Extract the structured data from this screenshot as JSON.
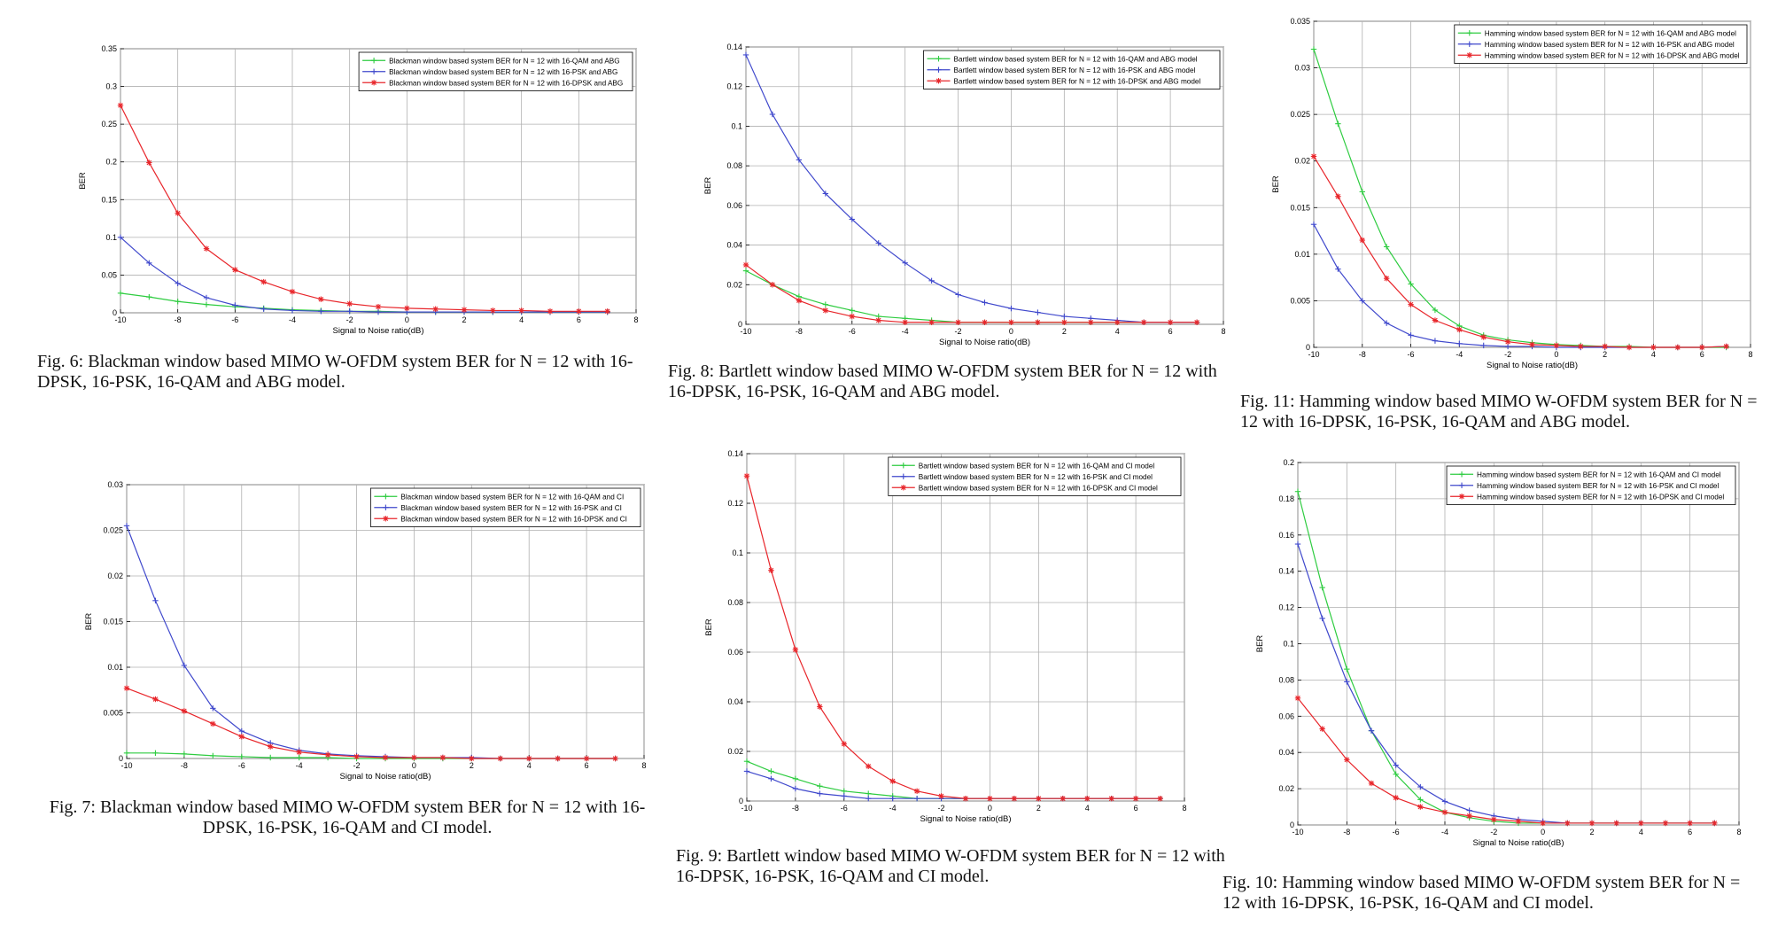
{
  "colors": {
    "qam": "#2ecc40",
    "psk": "#3f48cc",
    "dpsk": "#e8262b",
    "grid": "#b0b0b0"
  },
  "xlabel": "Signal to Noise ratio(dB)",
  "ylabel": "BER",
  "chart_data": [
    {
      "id": "fig6",
      "type": "line",
      "xlim": [
        -10,
        8
      ],
      "ylim": [
        0,
        0.35
      ],
      "xticks": [
        "-10",
        "-8",
        "-6",
        "-4",
        "-2",
        "0",
        "2",
        "4",
        "6",
        "8"
      ],
      "yticks": [
        "0",
        "0.05",
        "0.1",
        "0.15",
        "0.2",
        "0.25",
        "0.3",
        "0.35"
      ],
      "ytick_values": [
        0,
        0.05,
        0.1,
        0.15,
        0.2,
        0.25,
        0.3,
        0.35
      ],
      "xlabel": "Signal to Noise ratio(dB)",
      "ylabel": "BER",
      "grid": true,
      "legend_position": "top-right",
      "x": [
        -10,
        -9,
        -8,
        -7,
        -6,
        -5,
        -4,
        -3,
        -2,
        -1,
        0,
        1,
        2,
        3,
        4,
        5,
        6,
        7
      ],
      "series": [
        {
          "name": "Blackman window based system BER for N = 12 with 16-QAM and ABG",
          "color": "#2ecc40",
          "marker": "+",
          "values": [
            0.026,
            0.021,
            0.015,
            0.011,
            0.008,
            0.006,
            0.004,
            0.003,
            0.002,
            0.002,
            0.001,
            0.001,
            0.001,
            0.001,
            0.001,
            0.001,
            0.001,
            0.001
          ]
        },
        {
          "name": "Blackman window based system BER for N = 12 with 16-PSK and ABG",
          "color": "#3f48cc",
          "marker": "+",
          "values": [
            0.1,
            0.066,
            0.039,
            0.02,
            0.01,
            0.005,
            0.003,
            0.002,
            0.002,
            0.001,
            0.001,
            0.001,
            0.001,
            0.001,
            0.001,
            0.001,
            0.001,
            0.001
          ]
        },
        {
          "name": "Blackman window based system BER for N = 12 with 16-DPSK and ABG",
          "color": "#e8262b",
          "marker": "*",
          "values": [
            0.275,
            0.199,
            0.132,
            0.085,
            0.057,
            0.041,
            0.028,
            0.018,
            0.012,
            0.008,
            0.006,
            0.005,
            0.004,
            0.003,
            0.003,
            0.002,
            0.002,
            0.002
          ]
        }
      ],
      "caption": "Fig. 6:  Blackman window based MIMO W-OFDM system BER for N = 12 with 16-DPSK, 16-PSK, 16-QAM and ABG model."
    },
    {
      "id": "fig7",
      "type": "line",
      "xlim": [
        -10,
        8
      ],
      "ylim": [
        0,
        0.03
      ],
      "xticks": [
        "-10",
        "-8",
        "-6",
        "-4",
        "-2",
        "0",
        "2",
        "4",
        "6",
        "8"
      ],
      "yticks": [
        "0",
        "0.005",
        "0.01",
        "0.015",
        "0.02",
        "0.025",
        "0.03"
      ],
      "ytick_values": [
        0,
        0.005,
        0.01,
        0.015,
        0.02,
        0.025,
        0.03
      ],
      "xlabel": "Signal to Noise ratio(dB)",
      "ylabel": "BER",
      "grid": true,
      "legend_position": "top-right",
      "x": [
        -10,
        -9,
        -8,
        -7,
        -6,
        -5,
        -4,
        -3,
        -2,
        -1,
        0,
        1,
        2,
        3,
        4,
        5,
        6,
        7
      ],
      "series": [
        {
          "name": "Blackman window based system BER for N = 12 with 16-QAM and CI",
          "color": "#2ecc40",
          "marker": "+",
          "values": [
            0.0006,
            0.0006,
            0.0005,
            0.0003,
            0.0002,
            0.0001,
            0.0001,
            0.0001,
            0,
            0,
            0,
            0,
            0,
            0,
            0,
            0,
            0,
            0
          ]
        },
        {
          "name": "Blackman window based system BER for N = 12 with 16-PSK and CI",
          "color": "#3f48cc",
          "marker": "+",
          "values": [
            0.0255,
            0.0173,
            0.0102,
            0.0055,
            0.003,
            0.0017,
            0.0009,
            0.0005,
            0.0003,
            0.0002,
            0.0001,
            0.0001,
            0.0001,
            0,
            0,
            0,
            0,
            0
          ]
        },
        {
          "name": "Blackman window based system BER for N = 12 with 16-DPSK and CI",
          "color": "#e8262b",
          "marker": "*",
          "values": [
            0.0077,
            0.0065,
            0.0052,
            0.0038,
            0.0024,
            0.0013,
            0.0007,
            0.0004,
            0.0002,
            0.0001,
            0.0001,
            0.0001,
            0,
            0,
            0,
            0,
            0,
            0
          ]
        }
      ],
      "caption": "Fig. 7:  Blackman window based MIMO W-OFDM system BER for N = 12 with 16-DPSK, 16-PSK, 16-QAM and CI model."
    },
    {
      "id": "fig8",
      "type": "line",
      "xlim": [
        -10,
        8
      ],
      "ylim": [
        0,
        0.14
      ],
      "xticks": [
        "-10",
        "-8",
        "-6",
        "-4",
        "-2",
        "0",
        "2",
        "4",
        "6",
        "8"
      ],
      "yticks": [
        "0",
        "0.02",
        "0.04",
        "0.06",
        "0.08",
        "0.1",
        "0.12",
        "0.14"
      ],
      "ytick_values": [
        0,
        0.02,
        0.04,
        0.06,
        0.08,
        0.1,
        0.12,
        0.14
      ],
      "xlabel": "Signal to Noise ratio(dB)",
      "ylabel": "BER",
      "grid": true,
      "legend_position": "top-right",
      "x": [
        -10,
        -9,
        -8,
        -7,
        -6,
        -5,
        -4,
        -3,
        -2,
        -1,
        0,
        1,
        2,
        3,
        4,
        5,
        6,
        7
      ],
      "series": [
        {
          "name": "Bartlett window based system BER for N = 12 with 16-QAM and ABG model",
          "color": "#2ecc40",
          "marker": "+",
          "values": [
            0.027,
            0.02,
            0.014,
            0.01,
            0.007,
            0.004,
            0.003,
            0.002,
            0.001,
            0.001,
            0.001,
            0.001,
            0.001,
            0.001,
            0.001,
            0.001,
            0.001,
            0.001
          ]
        },
        {
          "name": "Bartlett window based system BER for N = 12 with 16-PSK and ABG model",
          "color": "#3f48cc",
          "marker": "+",
          "values": [
            0.136,
            0.106,
            0.083,
            0.066,
            0.053,
            0.041,
            0.031,
            0.022,
            0.015,
            0.011,
            0.008,
            0.006,
            0.004,
            0.003,
            0.002,
            0.001,
            0.001,
            0.001
          ]
        },
        {
          "name": "Bartlett window based system BER for N = 12 with 16-DPSK and ABG model",
          "color": "#e8262b",
          "marker": "*",
          "values": [
            0.03,
            0.02,
            0.012,
            0.007,
            0.004,
            0.002,
            0.001,
            0.001,
            0.001,
            0.001,
            0.001,
            0.001,
            0.001,
            0.001,
            0.001,
            0.001,
            0.001,
            0.001
          ]
        }
      ],
      "caption": "Fig. 8:  Bartlett window based MIMO W-OFDM system BER for N = 12 with 16-DPSK, 16-PSK, 16-QAM and ABG model."
    },
    {
      "id": "fig9",
      "type": "line",
      "xlim": [
        -10,
        8
      ],
      "ylim": [
        0,
        0.14
      ],
      "xticks": [
        "-10",
        "-8",
        "-6",
        "-4",
        "-2",
        "0",
        "2",
        "4",
        "6",
        "8"
      ],
      "yticks": [
        "0",
        "0.02",
        "0.04",
        "0.06",
        "0.08",
        "0.1",
        "0.12",
        "0.14"
      ],
      "ytick_values": [
        0,
        0.02,
        0.04,
        0.06,
        0.08,
        0.1,
        0.12,
        0.14
      ],
      "xlabel": "Signal to Noise ratio(dB)",
      "ylabel": "BER",
      "grid": true,
      "legend_position": "top-right",
      "x": [
        -10,
        -9,
        -8,
        -7,
        -6,
        -5,
        -4,
        -3,
        -2,
        -1,
        0,
        1,
        2,
        3,
        4,
        5,
        6,
        7
      ],
      "series": [
        {
          "name": "Bartlett window based system BER for N = 12 with 16-QAM and CI model",
          "color": "#2ecc40",
          "marker": "+",
          "values": [
            0.016,
            0.012,
            0.009,
            0.006,
            0.004,
            0.003,
            0.002,
            0.001,
            0.001,
            0.001,
            0.001,
            0.001,
            0.001,
            0.001,
            0.001,
            0.001,
            0.001,
            0.001
          ]
        },
        {
          "name": "Bartlett window based system BER for N = 12 with 16-PSK and CI model",
          "color": "#3f48cc",
          "marker": "+",
          "values": [
            0.012,
            0.009,
            0.005,
            0.003,
            0.002,
            0.001,
            0.001,
            0.001,
            0.001,
            0.001,
            0.001,
            0.001,
            0.001,
            0.001,
            0.001,
            0.001,
            0.001,
            0.001
          ]
        },
        {
          "name": "Bartlett window based system BER for N = 12 with 16-DPSK and CI model",
          "color": "#e8262b",
          "marker": "*",
          "values": [
            0.131,
            0.093,
            0.061,
            0.038,
            0.023,
            0.014,
            0.008,
            0.004,
            0.002,
            0.001,
            0.001,
            0.001,
            0.001,
            0.001,
            0.001,
            0.001,
            0.001,
            0.001
          ]
        }
      ],
      "caption": "Fig. 9:  Bartlett window based MIMO W-OFDM system BER for N = 12 with 16-DPSK, 16-PSK, 16-QAM and CI model."
    },
    {
      "id": "fig11",
      "type": "line",
      "xlim": [
        -10,
        8
      ],
      "ylim": [
        0,
        0.035
      ],
      "xticks": [
        "-10",
        "-8",
        "-6",
        "-4",
        "-2",
        "0",
        "2",
        "4",
        "6",
        "8"
      ],
      "yticks": [
        "0",
        "0.005",
        "0.01",
        "0.015",
        "0.02",
        "0.025",
        "0.03",
        "0.035"
      ],
      "ytick_values": [
        0,
        0.005,
        0.01,
        0.015,
        0.02,
        0.025,
        0.03,
        0.035
      ],
      "xlabel": "Signal to Noise ratio(dB)",
      "ylabel": "BER",
      "grid": true,
      "legend_position": "top-right",
      "x": [
        -10,
        -9,
        -8,
        -7,
        -6,
        -5,
        -4,
        -3,
        -2,
        -1,
        0,
        1,
        2,
        3,
        4,
        5,
        6,
        7
      ],
      "series": [
        {
          "name": "Hamming window based system BER for N = 12 with 16-QAM and ABG model",
          "color": "#2ecc40",
          "marker": "+",
          "values": [
            0.032,
            0.024,
            0.0167,
            0.0108,
            0.0068,
            0.004,
            0.0023,
            0.0013,
            0.0008,
            0.0005,
            0.0003,
            0.0002,
            0.0001,
            0.0001,
            0,
            0,
            0,
            0
          ]
        },
        {
          "name": "Hamming window based system BER for N = 12 with 16-PSK and ABG model",
          "color": "#3f48cc",
          "marker": "+",
          "values": [
            0.0132,
            0.0084,
            0.005,
            0.0026,
            0.0013,
            0.0007,
            0.0004,
            0.0002,
            0.0001,
            0.0001,
            0,
            0,
            0,
            0,
            0,
            0,
            0,
            0.0001
          ]
        },
        {
          "name": "Hamming window based system BER for N = 12 with 16-DPSK and ABG model",
          "color": "#e8262b",
          "marker": "*",
          "values": [
            0.0205,
            0.0162,
            0.0115,
            0.0074,
            0.0046,
            0.0029,
            0.0019,
            0.0011,
            0.0006,
            0.0003,
            0.0002,
            0.0001,
            0.0001,
            0,
            0,
            0,
            0,
            0.0001
          ]
        }
      ],
      "caption": "Fig. 11:  Hamming window based MIMO W-OFDM system BER for N = 12 with 16-DPSK, 16-PSK, 16-QAM and ABG model."
    },
    {
      "id": "fig10",
      "type": "line",
      "xlim": [
        -10,
        8
      ],
      "ylim": [
        0,
        0.2
      ],
      "xticks": [
        "-10",
        "-8",
        "-6",
        "-4",
        "-2",
        "0",
        "2",
        "4",
        "6",
        "8"
      ],
      "yticks": [
        "0",
        "0.02",
        "0.04",
        "0.06",
        "0.08",
        "0.1",
        "0.12",
        "0.14",
        "0.16",
        "0.18",
        "0.2"
      ],
      "ytick_values": [
        0,
        0.02,
        0.04,
        0.06,
        0.08,
        0.1,
        0.12,
        0.14,
        0.16,
        0.18,
        0.2
      ],
      "xlabel": "Signal to Noise ratio(dB)",
      "ylabel": "BER",
      "grid": true,
      "legend_position": "top-right",
      "x": [
        -10,
        -9,
        -8,
        -7,
        -6,
        -5,
        -4,
        -3,
        -2,
        -1,
        0,
        1,
        2,
        3,
        4,
        5,
        6,
        7
      ],
      "series": [
        {
          "name": "Hamming window based system BER for N = 12 with 16-QAM and CI model",
          "color": "#2ecc40",
          "marker": "+",
          "values": [
            0.184,
            0.131,
            0.086,
            0.052,
            0.028,
            0.014,
            0.007,
            0.004,
            0.002,
            0.001,
            0.001,
            0.001,
            0.001,
            0.001,
            0.001,
            0.001,
            0.001,
            0.001
          ]
        },
        {
          "name": "Hamming window based system BER for N = 12 with 16-PSK and CI model",
          "color": "#3f48cc",
          "marker": "+",
          "values": [
            0.155,
            0.114,
            0.079,
            0.052,
            0.033,
            0.021,
            0.013,
            0.008,
            0.005,
            0.003,
            0.002,
            0.001,
            0.001,
            0.001,
            0.001,
            0.001,
            0.001,
            0.001
          ]
        },
        {
          "name": "Hamming window based system BER for N = 12 with 16-DPSK and CI model",
          "color": "#e8262b",
          "marker": "*",
          "values": [
            0.07,
            0.053,
            0.036,
            0.023,
            0.015,
            0.01,
            0.007,
            0.005,
            0.003,
            0.002,
            0.001,
            0.001,
            0.001,
            0.001,
            0.001,
            0.001,
            0.001,
            0.001
          ]
        }
      ],
      "caption": "Fig. 10:  Hamming window based MIMO W-OFDM system BER for N = 12 with 16-DPSK, 16-PSK, 16-QAM and CI model."
    }
  ]
}
